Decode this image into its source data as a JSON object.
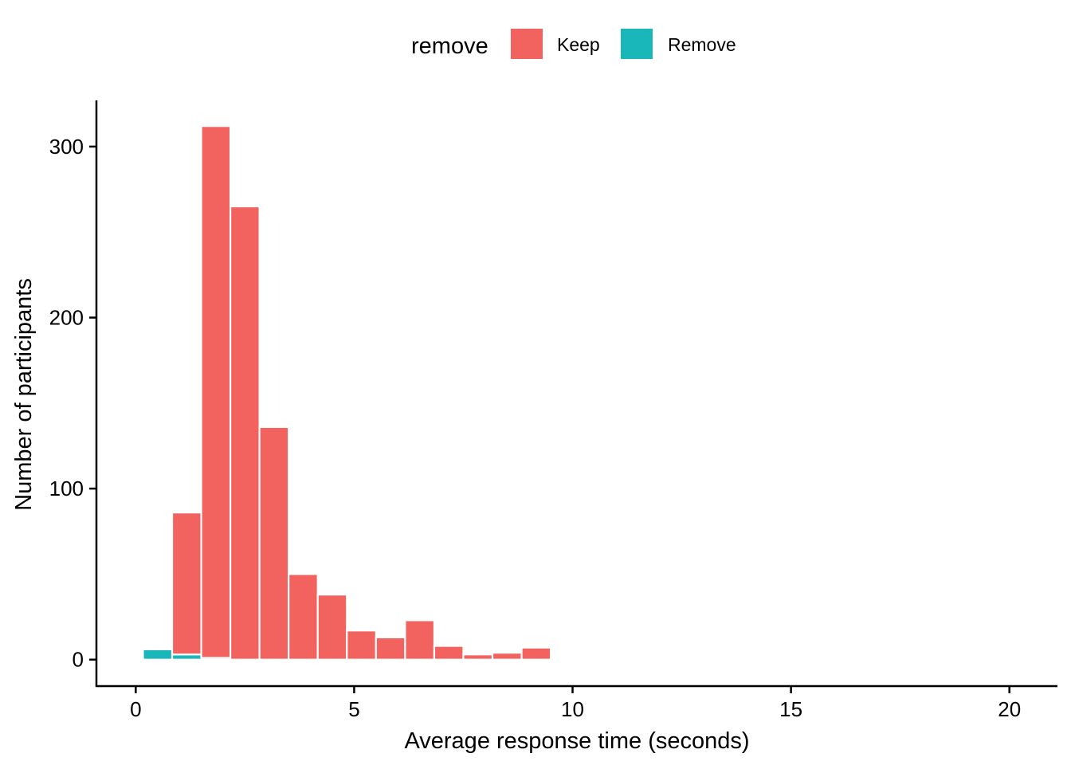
{
  "chart_data": {
    "type": "bar",
    "subtype": "stacked-histogram",
    "xlabel": "Average response time (seconds)",
    "ylabel": "Number of participants",
    "xlim": [
      -0.9,
      21.1
    ],
    "ylim": [
      -15.5,
      327
    ],
    "x_ticks": [
      0,
      5,
      10,
      15,
      20
    ],
    "y_ticks": [
      0,
      100,
      200,
      300
    ],
    "grid": false,
    "legend": {
      "title": "remove",
      "position": "top"
    },
    "bin_width": 0.667,
    "bin_centers": [
      0.5,
      1.167,
      1.833,
      2.5,
      3.167,
      3.833,
      4.5,
      5.167,
      5.833,
      6.5,
      7.167,
      7.833,
      8.5,
      9.167,
      9.833,
      10.5,
      11.167,
      11.833,
      12.5,
      13.167,
      13.833
    ],
    "series": [
      {
        "name": "Remove",
        "color": "#19B6BA",
        "values": [
          6,
          3,
          1,
          0,
          0,
          0,
          0,
          0,
          0,
          0,
          0,
          0,
          0,
          0,
          0,
          0,
          0,
          0,
          0,
          0,
          0
        ]
      },
      {
        "name": "Keep",
        "color": "#F2625E",
        "values": [
          0,
          83,
          311,
          265,
          136,
          50,
          38,
          17,
          13,
          23,
          8,
          3,
          4,
          7,
          1,
          1,
          1,
          1,
          1,
          0,
          1
        ]
      }
    ]
  }
}
